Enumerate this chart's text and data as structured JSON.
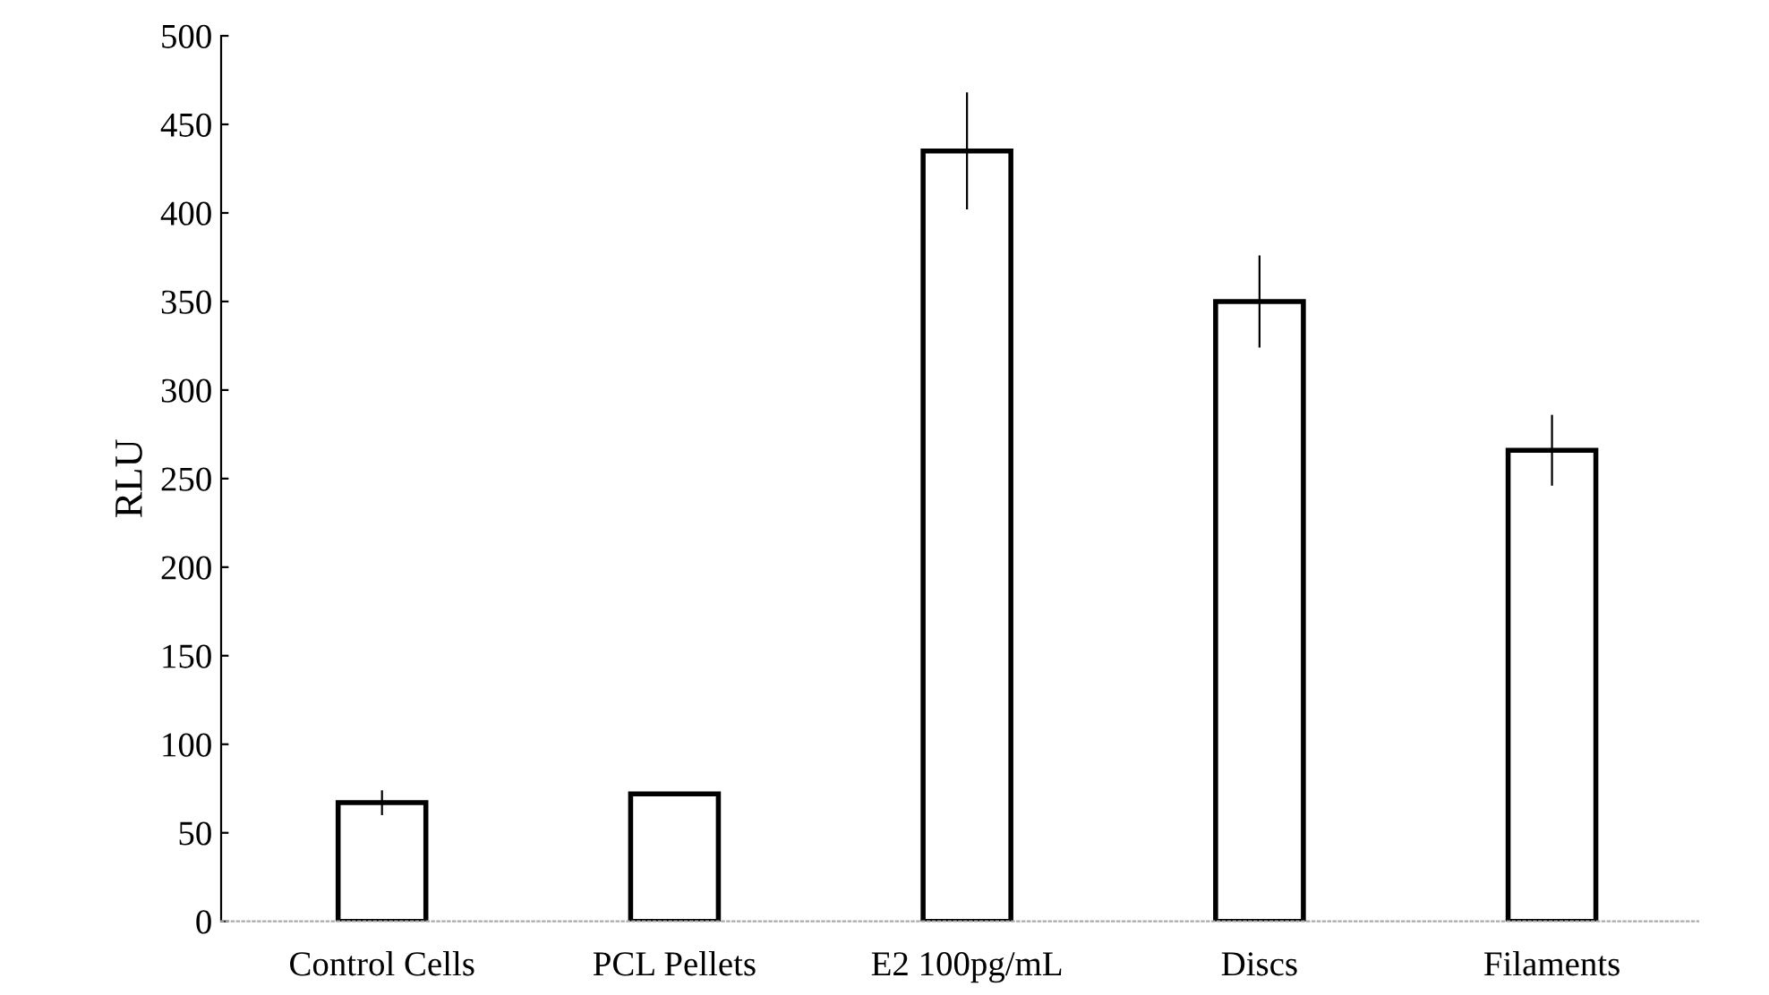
{
  "chart_data": {
    "type": "bar",
    "ylabel": "RLU",
    "categories": [
      "Control Cells",
      "PCL Pellets",
      "E2 100pg/mL",
      "Discs",
      "Filaments"
    ],
    "values": [
      67,
      72,
      435,
      350,
      266
    ],
    "errors": [
      7,
      1,
      33,
      26,
      20
    ],
    "color": "#ffffff",
    "ylim": [
      0,
      500
    ],
    "yticks": [
      0,
      50,
      100,
      150,
      200,
      250,
      300,
      350,
      400,
      450,
      500
    ],
    "grid": false
  }
}
